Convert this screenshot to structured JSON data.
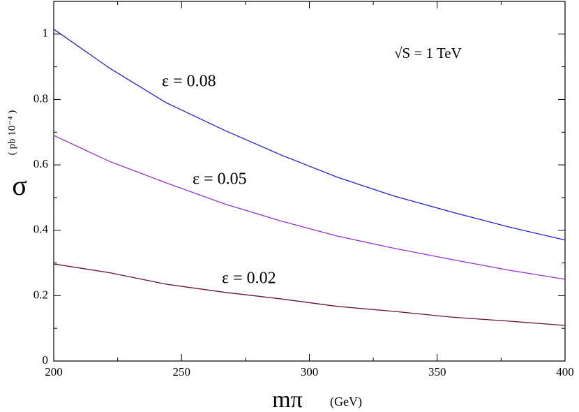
{
  "chart_data": {
    "type": "line",
    "y_label": "σ",
    "y_unit": "( pb 10⁻⁴ )",
    "x_label": "mπ",
    "x_unit": "(GeV)",
    "annotations": [
      "ε = 0.08",
      "ε = 0.05",
      "ε = 0.02",
      "√S  =  1  TeV"
    ],
    "x": [
      200,
      222,
      244,
      267,
      289,
      311,
      333,
      356,
      378,
      400
    ],
    "series": [
      {
        "color": "#1f1fe0",
        "values": [
          1.015,
          0.895,
          0.79,
          0.705,
          0.63,
          0.562,
          0.505,
          0.455,
          0.41,
          0.37
        ]
      },
      {
        "color": "#9a30d0",
        "values": [
          0.69,
          0.61,
          0.545,
          0.48,
          0.428,
          0.382,
          0.345,
          0.31,
          0.278,
          0.25
        ]
      },
      {
        "color": "#6b0f3a",
        "values": [
          0.297,
          0.27,
          0.235,
          0.21,
          0.19,
          0.167,
          0.152,
          0.134,
          0.122,
          0.109
        ]
      }
    ],
    "xlim": [
      200,
      400
    ],
    "xticks": [
      200,
      250,
      300,
      350,
      400
    ],
    "xminorticks": [
      225,
      275,
      325,
      375
    ],
    "ylim": [
      0,
      1.1
    ],
    "yticks": [
      0,
      0.2,
      0.4,
      0.6,
      0.8,
      1
    ],
    "yminorticks": [
      0.1,
      0.3,
      0.5,
      0.7,
      0.9
    ],
    "grid": false
  }
}
